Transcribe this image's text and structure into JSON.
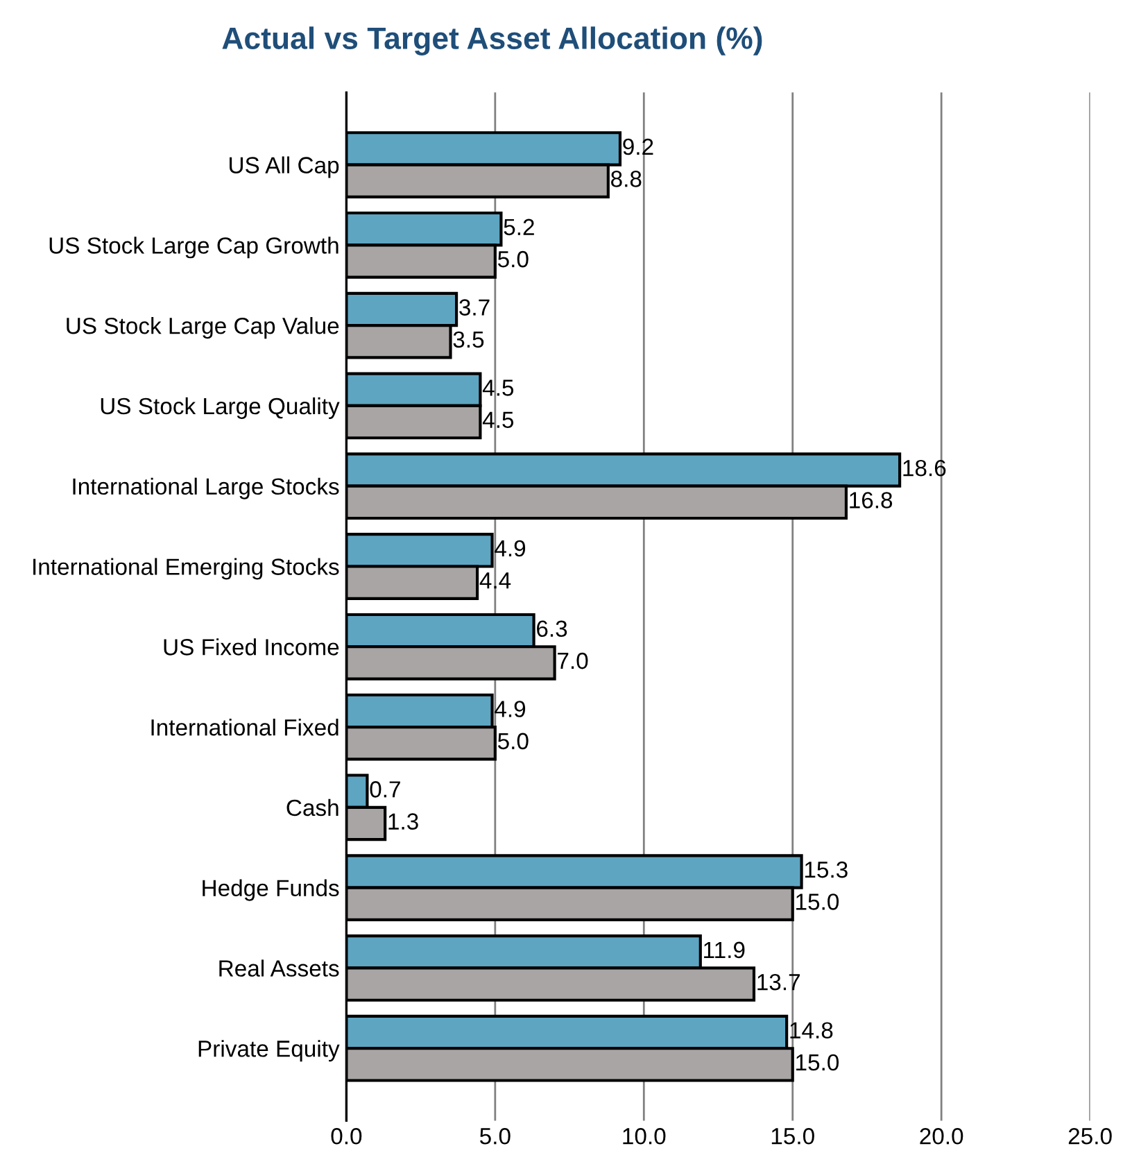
{
  "chart_data": {
    "type": "bar",
    "orientation": "horizontal",
    "title": "Actual vs Target Asset Allocation (%)",
    "categories": [
      "US All Cap",
      "US Stock Large Cap Growth",
      "US Stock Large Cap Value",
      "US Stock Large Quality",
      "International Large Stocks",
      "International Emerging Stocks",
      "US Fixed Income",
      "International Fixed",
      "Cash",
      "Hedge Funds",
      "Real Assets",
      "Private Equity"
    ],
    "series": [
      {
        "color": "#5ea5c2",
        "values": [
          9.2,
          5.2,
          3.7,
          4.5,
          18.6,
          4.9,
          6.3,
          4.9,
          0.7,
          15.3,
          11.9,
          14.8
        ],
        "value_labels": [
          "9.2",
          "5.2",
          "3.7",
          "4.5",
          "18.6",
          "4.9",
          "6.3",
          "4.9",
          "0.7",
          "15.3",
          "11.9",
          "14.8"
        ]
      },
      {
        "color": "#a9a5a5",
        "values": [
          8.8,
          5.0,
          3.5,
          4.5,
          16.8,
          4.4,
          7.0,
          5.0,
          1.3,
          15.0,
          13.7,
          15.0
        ],
        "value_labels": [
          "8.8",
          "5.0",
          "3.5",
          "4.5",
          "16.8",
          "4.4",
          "7.0",
          "5.0",
          "1.3",
          "15.0",
          "13.7",
          "15.0"
        ]
      }
    ],
    "xlim": [
      0,
      25
    ],
    "xticks": [
      {
        "value": 0,
        "label": "0.0"
      },
      {
        "value": 5,
        "label": "5.0"
      },
      {
        "value": 10,
        "label": "10.0"
      },
      {
        "value": 15,
        "label": "15.0"
      },
      {
        "value": 20,
        "label": "20.0"
      },
      {
        "value": 25,
        "label": "25.0"
      }
    ],
    "grid": "x",
    "legend": false
  }
}
